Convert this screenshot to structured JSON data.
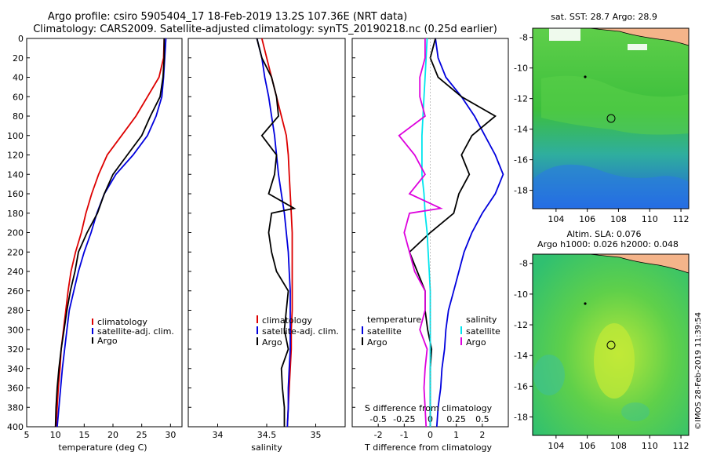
{
  "header": {
    "title_line1": "Argo profile: csiro 5905404_17 18-Feb-2019 13.2S 107.36E (NRT data)",
    "title_line2": "Climatology: CARS2009. Satellite-adjusted climatology: synTS_20190218.nc (0.25d earlier)"
  },
  "colors": {
    "climatology": "#dd0000",
    "satellite": "#0000dd",
    "argo": "#000000",
    "s_satellite": "#00e5ee",
    "s_argo": "#dd00dd"
  },
  "depth_axis": {
    "ticks": [
      "0",
      "20",
      "40",
      "60",
      "80",
      "100",
      "120",
      "140",
      "160",
      "180",
      "200",
      "220",
      "240",
      "260",
      "280",
      "300",
      "320",
      "340",
      "360",
      "380",
      "400"
    ],
    "ylim": [
      0,
      400
    ]
  },
  "chart_data": [
    {
      "type": "line",
      "name": "temperature-profile",
      "xlabel": "temperature (deg C)",
      "ylabel": "depth",
      "xlim": [
        5,
        32
      ],
      "ylim": [
        0,
        400
      ],
      "xticks": [
        "5",
        "10",
        "15",
        "20",
        "25",
        "30"
      ],
      "legend": {
        "placement": "bottom-right",
        "items": [
          "climatology",
          "satellite-adj. clim.",
          "Argo"
        ]
      },
      "series": [
        {
          "name": "climatology",
          "color": "#dd0000",
          "points": [
            [
              28.9,
              0
            ],
            [
              28.8,
              20
            ],
            [
              28,
              40
            ],
            [
              26,
              60
            ],
            [
              24,
              80
            ],
            [
              21.5,
              100
            ],
            [
              19,
              120
            ],
            [
              17.5,
              140
            ],
            [
              16.3,
              160
            ],
            [
              15.3,
              180
            ],
            [
              14.5,
              200
            ],
            [
              13.5,
              220
            ],
            [
              12.7,
              240
            ],
            [
              12.2,
              260
            ],
            [
              11.8,
              280
            ],
            [
              11.4,
              300
            ],
            [
              11,
              320
            ],
            [
              10.8,
              340
            ],
            [
              10.5,
              360
            ],
            [
              10.3,
              380
            ],
            [
              10.1,
              400
            ]
          ]
        },
        {
          "name": "satellite-adj. clim.",
          "color": "#0000dd",
          "points": [
            [
              29.2,
              0
            ],
            [
              29,
              20
            ],
            [
              28.8,
              40
            ],
            [
              28.5,
              60
            ],
            [
              27.5,
              80
            ],
            [
              26,
              100
            ],
            [
              23.5,
              120
            ],
            [
              20.5,
              140
            ],
            [
              18.5,
              160
            ],
            [
              17.2,
              180
            ],
            [
              16.2,
              200
            ],
            [
              15,
              220
            ],
            [
              14,
              240
            ],
            [
              13.2,
              260
            ],
            [
              12.4,
              280
            ],
            [
              12,
              300
            ],
            [
              11.6,
              320
            ],
            [
              11.2,
              340
            ],
            [
              10.9,
              360
            ],
            [
              10.6,
              380
            ],
            [
              10.3,
              400
            ]
          ]
        },
        {
          "name": "Argo",
          "color": "#000000",
          "points": [
            [
              28.9,
              0
            ],
            [
              28.9,
              20
            ],
            [
              28.7,
              40
            ],
            [
              28.2,
              60
            ],
            [
              26.5,
              80
            ],
            [
              25,
              100
            ],
            [
              22.5,
              120
            ],
            [
              20,
              140
            ],
            [
              18.5,
              160
            ],
            [
              17.3,
              180
            ],
            [
              15.5,
              200
            ],
            [
              14,
              220
            ],
            [
              13.4,
              240
            ],
            [
              12.6,
              260
            ],
            [
              12,
              280
            ],
            [
              11.5,
              300
            ],
            [
              11,
              320
            ],
            [
              10.6,
              340
            ],
            [
              10.3,
              360
            ],
            [
              10.1,
              380
            ],
            [
              10,
              400
            ]
          ]
        }
      ]
    },
    {
      "type": "line",
      "name": "salinity-profile",
      "xlabel": "salinity",
      "ylabel": "depth",
      "xlim": [
        33.7,
        35.3
      ],
      "ylim": [
        0,
        400
      ],
      "xticks": [
        "34",
        "34.5",
        "35"
      ],
      "legend": {
        "placement": "bottom-right",
        "items": [
          "climatology",
          "satellite-adj. clim.",
          "Argo"
        ]
      },
      "series": [
        {
          "name": "climatology",
          "color": "#dd0000",
          "points": [
            [
              34.45,
              0
            ],
            [
              34.5,
              20
            ],
            [
              34.55,
              40
            ],
            [
              34.6,
              60
            ],
            [
              34.65,
              80
            ],
            [
              34.7,
              100
            ],
            [
              34.72,
              120
            ],
            [
              34.73,
              140
            ],
            [
              34.74,
              160
            ],
            [
              34.75,
              180
            ],
            [
              34.76,
              200
            ],
            [
              34.76,
              220
            ],
            [
              34.76,
              240
            ],
            [
              34.76,
              260
            ],
            [
              34.76,
              280
            ],
            [
              34.75,
              300
            ],
            [
              34.75,
              320
            ],
            [
              34.74,
              340
            ],
            [
              34.73,
              360
            ],
            [
              34.72,
              380
            ],
            [
              34.71,
              400
            ]
          ]
        },
        {
          "name": "satellite-adj. clim.",
          "color": "#0000dd",
          "points": [
            [
              34.4,
              0
            ],
            [
              34.45,
              20
            ],
            [
              34.48,
              40
            ],
            [
              34.52,
              60
            ],
            [
              34.55,
              80
            ],
            [
              34.58,
              100
            ],
            [
              34.6,
              120
            ],
            [
              34.62,
              140
            ],
            [
              34.65,
              160
            ],
            [
              34.68,
              180
            ],
            [
              34.7,
              200
            ],
            [
              34.72,
              220
            ],
            [
              34.73,
              240
            ],
            [
              34.74,
              260
            ],
            [
              34.74,
              280
            ],
            [
              34.74,
              300
            ],
            [
              34.74,
              320
            ],
            [
              34.73,
              340
            ],
            [
              34.72,
              360
            ],
            [
              34.72,
              380
            ],
            [
              34.71,
              400
            ]
          ]
        },
        {
          "name": "Argo",
          "color": "#000000",
          "points": [
            [
              34.4,
              0
            ],
            [
              34.45,
              20
            ],
            [
              34.55,
              40
            ],
            [
              34.6,
              60
            ],
            [
              34.62,
              80
            ],
            [
              34.45,
              100
            ],
            [
              34.6,
              120
            ],
            [
              34.58,
              140
            ],
            [
              34.52,
              160
            ],
            [
              34.78,
              175
            ],
            [
              34.55,
              180
            ],
            [
              34.52,
              200
            ],
            [
              34.55,
              220
            ],
            [
              34.6,
              240
            ],
            [
              34.72,
              260
            ],
            [
              34.7,
              280
            ],
            [
              34.68,
              300
            ],
            [
              34.72,
              320
            ],
            [
              34.65,
              340
            ],
            [
              34.66,
              360
            ],
            [
              34.68,
              380
            ],
            [
              34.68,
              400
            ]
          ]
        }
      ]
    },
    {
      "type": "line",
      "name": "difference-profile",
      "xlabel": "T difference from climatology",
      "xlabel2": "S difference from climatology",
      "ylabel": "depth",
      "xlim": [
        -3,
        3
      ],
      "ylim": [
        0,
        400
      ],
      "xticks": [
        "-2",
        "-1",
        "0",
        "1",
        "2"
      ],
      "xticks_top": [
        "-0.5",
        "-0.25",
        "0",
        "0.25",
        "0.5"
      ],
      "legend_t": {
        "header": "temperature",
        "items": [
          "satellite",
          "Argo"
        ]
      },
      "legend_s": {
        "header": "salinity",
        "items": [
          "satellite",
          "Argo"
        ]
      },
      "series": [
        {
          "name": "T satellite",
          "color": "#0000dd",
          "points": [
            [
              0.2,
              0
            ],
            [
              0.3,
              20
            ],
            [
              0.6,
              40
            ],
            [
              1.2,
              60
            ],
            [
              1.7,
              80
            ],
            [
              2.1,
              100
            ],
            [
              2.5,
              120
            ],
            [
              2.8,
              140
            ],
            [
              2.5,
              160
            ],
            [
              2,
              180
            ],
            [
              1.6,
              200
            ],
            [
              1.3,
              220
            ],
            [
              1.1,
              240
            ],
            [
              0.9,
              260
            ],
            [
              0.7,
              280
            ],
            [
              0.6,
              300
            ],
            [
              0.55,
              320
            ],
            [
              0.45,
              340
            ],
            [
              0.4,
              360
            ],
            [
              0.3,
              380
            ],
            [
              0.25,
              400
            ]
          ]
        },
        {
          "name": "T Argo",
          "color": "#000000",
          "points": [
            [
              0.2,
              0
            ],
            [
              0,
              20
            ],
            [
              0.3,
              40
            ],
            [
              1.2,
              60
            ],
            [
              2.5,
              80
            ],
            [
              1.6,
              100
            ],
            [
              1.2,
              120
            ],
            [
              1.5,
              140
            ],
            [
              1.1,
              160
            ],
            [
              0.9,
              180
            ],
            [
              0,
              200
            ],
            [
              -0.8,
              220
            ],
            [
              -0.5,
              240
            ],
            [
              -0.2,
              260
            ],
            [
              -0.2,
              280
            ],
            [
              -0.1,
              300
            ],
            [
              0.05,
              320
            ],
            [
              0,
              340
            ],
            [
              0,
              360
            ],
            [
              0,
              380
            ],
            [
              0,
              400
            ]
          ]
        },
        {
          "name": "S satellite",
          "color": "#00e5ee",
          "points": [
            [
              -0.03,
              0
            ],
            [
              -0.04,
              20
            ],
            [
              -0.05,
              40
            ],
            [
              -0.06,
              60
            ],
            [
              -0.07,
              80
            ],
            [
              -0.08,
              100
            ],
            [
              -0.08,
              120
            ],
            [
              -0.08,
              140
            ],
            [
              -0.06,
              160
            ],
            [
              -0.05,
              180
            ],
            [
              -0.03,
              200
            ],
            [
              -0.02,
              220
            ],
            [
              -0.01,
              240
            ],
            [
              0,
              260
            ],
            [
              0,
              280
            ],
            [
              0,
              300
            ],
            [
              0,
              320
            ],
            [
              0,
              340
            ],
            [
              0,
              360
            ],
            [
              0,
              380
            ],
            [
              0,
              400
            ]
          ]
        },
        {
          "name": "S Argo",
          "color": "#dd00dd",
          "points": [
            [
              -0.05,
              0
            ],
            [
              -0.05,
              20
            ],
            [
              -0.1,
              40
            ],
            [
              -0.1,
              60
            ],
            [
              -0.05,
              80
            ],
            [
              -0.3,
              100
            ],
            [
              -0.15,
              120
            ],
            [
              -0.05,
              140
            ],
            [
              -0.2,
              160
            ],
            [
              0.1,
              175
            ],
            [
              -0.2,
              180
            ],
            [
              -0.25,
              200
            ],
            [
              -0.2,
              220
            ],
            [
              -0.15,
              240
            ],
            [
              -0.05,
              260
            ],
            [
              -0.05,
              280
            ],
            [
              -0.1,
              300
            ],
            [
              -0.03,
              320
            ],
            [
              -0.05,
              340
            ],
            [
              -0.06,
              360
            ],
            [
              -0.05,
              380
            ],
            [
              -0.04,
              400
            ]
          ]
        }
      ]
    },
    {
      "type": "heatmap",
      "name": "sst-map",
      "title": "sat. SST: 28.7 Argo: 28.9",
      "xticks": [
        "104",
        "106",
        "108",
        "110",
        "112"
      ],
      "yticks": [
        "-8",
        "-10",
        "-12",
        "-14",
        "-16",
        "-18"
      ],
      "xlim": [
        102.5,
        112.5
      ],
      "ylim": [
        -19.2,
        -7.4
      ],
      "profile_location": [
        107.36,
        -13.2
      ]
    },
    {
      "type": "heatmap",
      "name": "sla-map",
      "title": "Altim. SLA: 0.076",
      "subtitle": "Argo h1000: 0.026 h2000: 0.048",
      "xticks": [
        "104",
        "106",
        "108",
        "110",
        "112"
      ],
      "yticks": [
        "-8",
        "-10",
        "-12",
        "-14",
        "-16",
        "-18"
      ],
      "xlim": [
        102.5,
        112.5
      ],
      "ylim": [
        -19.2,
        -7.4
      ],
      "profile_location": [
        107.36,
        -13.2
      ]
    }
  ],
  "legend_labels": {
    "climatology": "climatology",
    "satellite_adj": "satellite-adj. clim.",
    "argo": "Argo",
    "temperature": "temperature",
    "salinity": "salinity",
    "satellite": "satellite"
  },
  "footer": {
    "stamp": "©IMOS 28-Feb-2019 11:39:54"
  }
}
